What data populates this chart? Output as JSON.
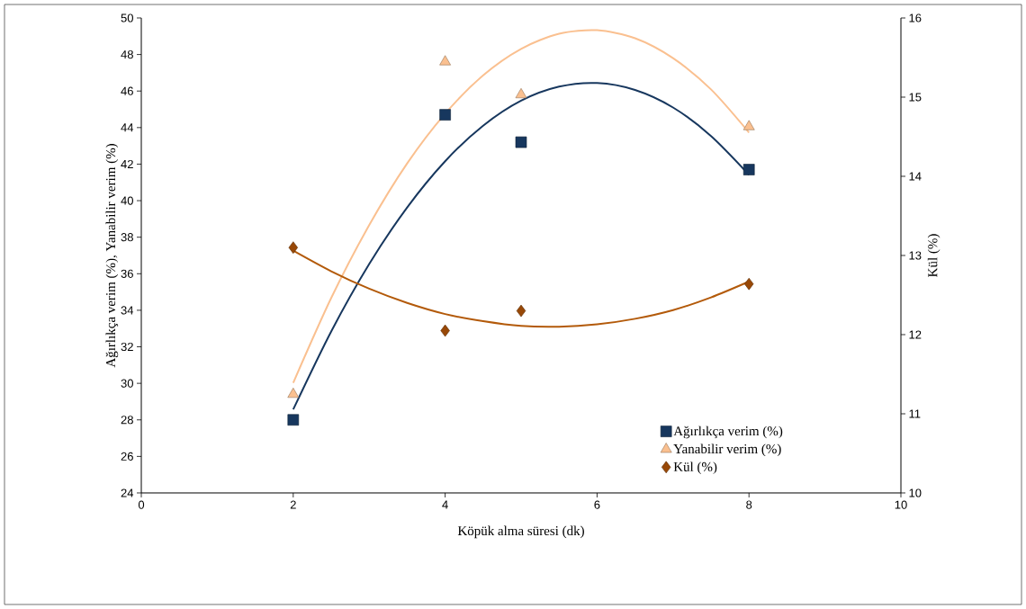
{
  "chart_data": {
    "type": "scatter",
    "xlabel": "Köpük alma süresi (dk)",
    "ylabel": "Ağırlıkça verim (%),  Yanabilir verim (%)",
    "y2label": "Kül (%)",
    "xlim": [
      0,
      10
    ],
    "xticks": [
      0,
      2,
      4,
      6,
      8,
      10
    ],
    "ylim": [
      24,
      50
    ],
    "yticks": [
      24,
      26,
      28,
      30,
      32,
      34,
      36,
      38,
      40,
      42,
      44,
      46,
      48,
      50
    ],
    "y2lim": [
      10,
      16
    ],
    "y2ticks": [
      10,
      11,
      12,
      13,
      14,
      15,
      16
    ],
    "legend": "bottom right",
    "series": [
      {
        "type": "line",
        "color": "#17375e",
        "marker": "none",
        "x": [
          2,
          2.5,
          3,
          3.5,
          4,
          4.5,
          5,
          5.5,
          6,
          6.5,
          7,
          7.5,
          8
        ],
        "values": [
          28.57,
          32.84,
          36.53,
          39.63,
          42.16,
          44.1,
          45.47,
          46.24,
          46.44,
          46.06,
          45.1,
          43.54,
          41.42
        ]
      },
      {
        "type": "line",
        "color": "#fac090",
        "marker": "none",
        "x": [
          2,
          2.5,
          3,
          3.5,
          4,
          4.5,
          5,
          5.5,
          6,
          6.5,
          7,
          7.5,
          8
        ],
        "values": [
          30.03,
          34.67,
          38.66,
          42.04,
          44.76,
          46.86,
          48.31,
          49.14,
          49.33,
          48.89,
          47.8,
          46.09,
          43.73
        ]
      },
      {
        "type": "line",
        "color": "#b35a0a",
        "marker": "none",
        "axis": "y2",
        "x": [
          2,
          2.5,
          3,
          3.5,
          4,
          4.5,
          5,
          5.5,
          6,
          6.5,
          7,
          7.5,
          8
        ],
        "values": [
          13.06,
          12.8,
          12.58,
          12.4,
          12.26,
          12.17,
          12.11,
          12.1,
          12.13,
          12.2,
          12.31,
          12.47,
          12.67
        ]
      },
      {
        "name": "Ağırlıkça verim (%)",
        "color": "#17375e",
        "marker": "square",
        "x": [
          2,
          4,
          5,
          8
        ],
        "values": [
          28,
          44.7,
          43.2,
          41.7
        ]
      },
      {
        "name": "Yanabilir verim (%)",
        "color": "#fac090",
        "marker": "triangle",
        "x": [
          2,
          4,
          5,
          8
        ],
        "values": [
          29.4,
          47.6,
          45.8,
          44.05
        ]
      },
      {
        "name": "Kül (%)",
        "color": "#984807",
        "marker": "diamond",
        "axis": "y2",
        "x": [
          2,
          4,
          5,
          8
        ],
        "values": [
          13.1,
          12.05,
          12.3,
          12.64
        ]
      }
    ]
  }
}
